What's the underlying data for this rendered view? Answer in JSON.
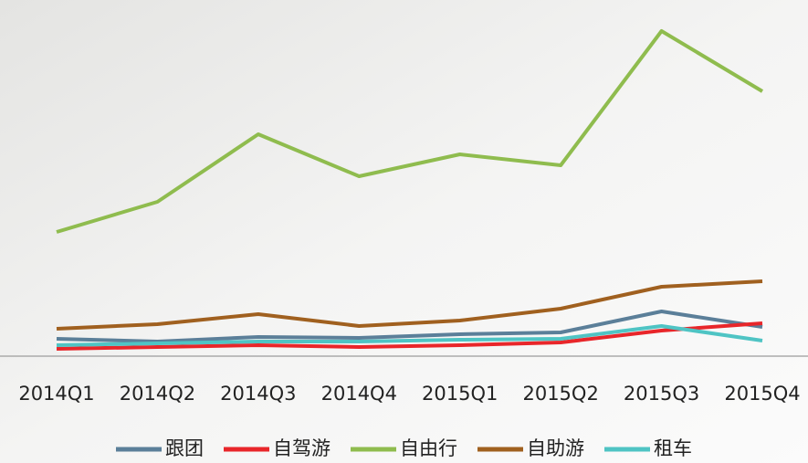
{
  "chart_data": {
    "type": "line",
    "categories": [
      "2014Q1",
      "2014Q2",
      "2014Q3",
      "2014Q4",
      "2015Q1",
      "2015Q2",
      "2015Q3",
      "2015Q4"
    ],
    "series": [
      {
        "name": "跟团",
        "color": "#5b7f99",
        "values": [
          19,
          16,
          21,
          20,
          24,
          26,
          49,
          32
        ]
      },
      {
        "name": "自驾游",
        "color": "#e8262a",
        "values": [
          8,
          10,
          12,
          10,
          12,
          15,
          28,
          36
        ]
      },
      {
        "name": "自由行",
        "color": "#8fbc4e",
        "values": [
          136,
          169,
          243,
          197,
          221,
          209,
          356,
          290
        ]
      },
      {
        "name": "自助游",
        "color": "#a0601f",
        "values": [
          30,
          35,
          46,
          33,
          39,
          52,
          76,
          82
        ]
      },
      {
        "name": "租车",
        "color": "#4fc4c4",
        "values": [
          12,
          14,
          16,
          16,
          18,
          19,
          33,
          17
        ]
      }
    ],
    "ylim": [
      0,
      370
    ]
  }
}
